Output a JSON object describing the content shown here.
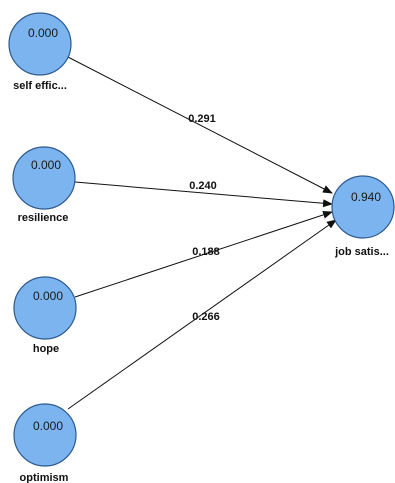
{
  "diagram": {
    "nodes": [
      {
        "id": "self_efficacy",
        "value": "0.000",
        "label": "self effic..."
      },
      {
        "id": "resilience",
        "value": "0.000",
        "label": "resilience"
      },
      {
        "id": "hope",
        "value": "0.000",
        "label": "hope"
      },
      {
        "id": "optimism",
        "value": "0.000",
        "label": "optimism"
      },
      {
        "id": "job_satisfaction",
        "value": "0.940",
        "label": "job satis..."
      }
    ],
    "edges": [
      {
        "from": "self_efficacy",
        "to": "job_satisfaction",
        "weight": "0.291"
      },
      {
        "from": "resilience",
        "to": "job_satisfaction",
        "weight": "0.240"
      },
      {
        "from": "hope",
        "to": "job_satisfaction",
        "weight": "0.188"
      },
      {
        "from": "optimism",
        "to": "job_satisfaction",
        "weight": "0.266"
      }
    ],
    "colors": {
      "node_fill": "#7cb4f0",
      "node_stroke": "#2c5a8e",
      "edge": "#111111"
    }
  }
}
